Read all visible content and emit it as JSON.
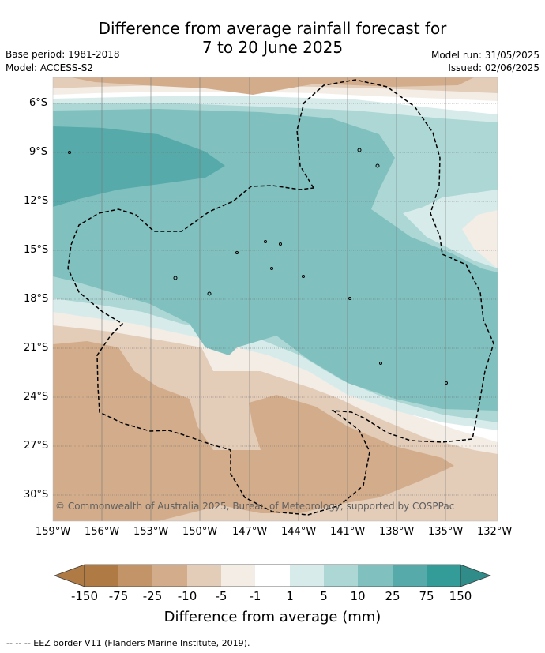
{
  "header": {
    "title_line1": "Difference from average rainfall forecast for",
    "title_line2": "7 to 20 June 2025",
    "base_period": "Base period: 1981-2018",
    "model": "Model: ACCESS-S2",
    "model_run": "Model run: 31/05/2025",
    "issued": "Issued: 02/06/2025"
  },
  "map": {
    "lat_labels": [
      "6°S",
      "9°S",
      "12°S",
      "15°S",
      "18°S",
      "21°S",
      "24°S",
      "27°S",
      "30°S"
    ],
    "lon_labels": [
      "159°W",
      "156°W",
      "153°W",
      "150°W",
      "147°W",
      "144°W",
      "141°W",
      "138°W",
      "135°W",
      "132°W"
    ],
    "copyright": "© Commonwealth of Australia 2025, Bureau of Meteorology, supported by COSPPac"
  },
  "colorbar": {
    "labels": [
      "-150",
      "-75",
      "-25",
      "-10",
      "-5",
      "-1",
      "1",
      "5",
      "10",
      "25",
      "75",
      "150"
    ],
    "colors": [
      "#b07a45",
      "#c29468",
      "#d3ad8b",
      "#e3cdb9",
      "#f3ede6",
      "#ffffff",
      "#d7ecea",
      "#acd7d5",
      "#80c0bf",
      "#56aaa9",
      "#339b98",
      "#2f8c89"
    ],
    "title": "Difference from average (mm)"
  },
  "footer": {
    "eez_note": "--  --  -- EEZ border V11 (Flanders Marine Institute, 2019)."
  }
}
